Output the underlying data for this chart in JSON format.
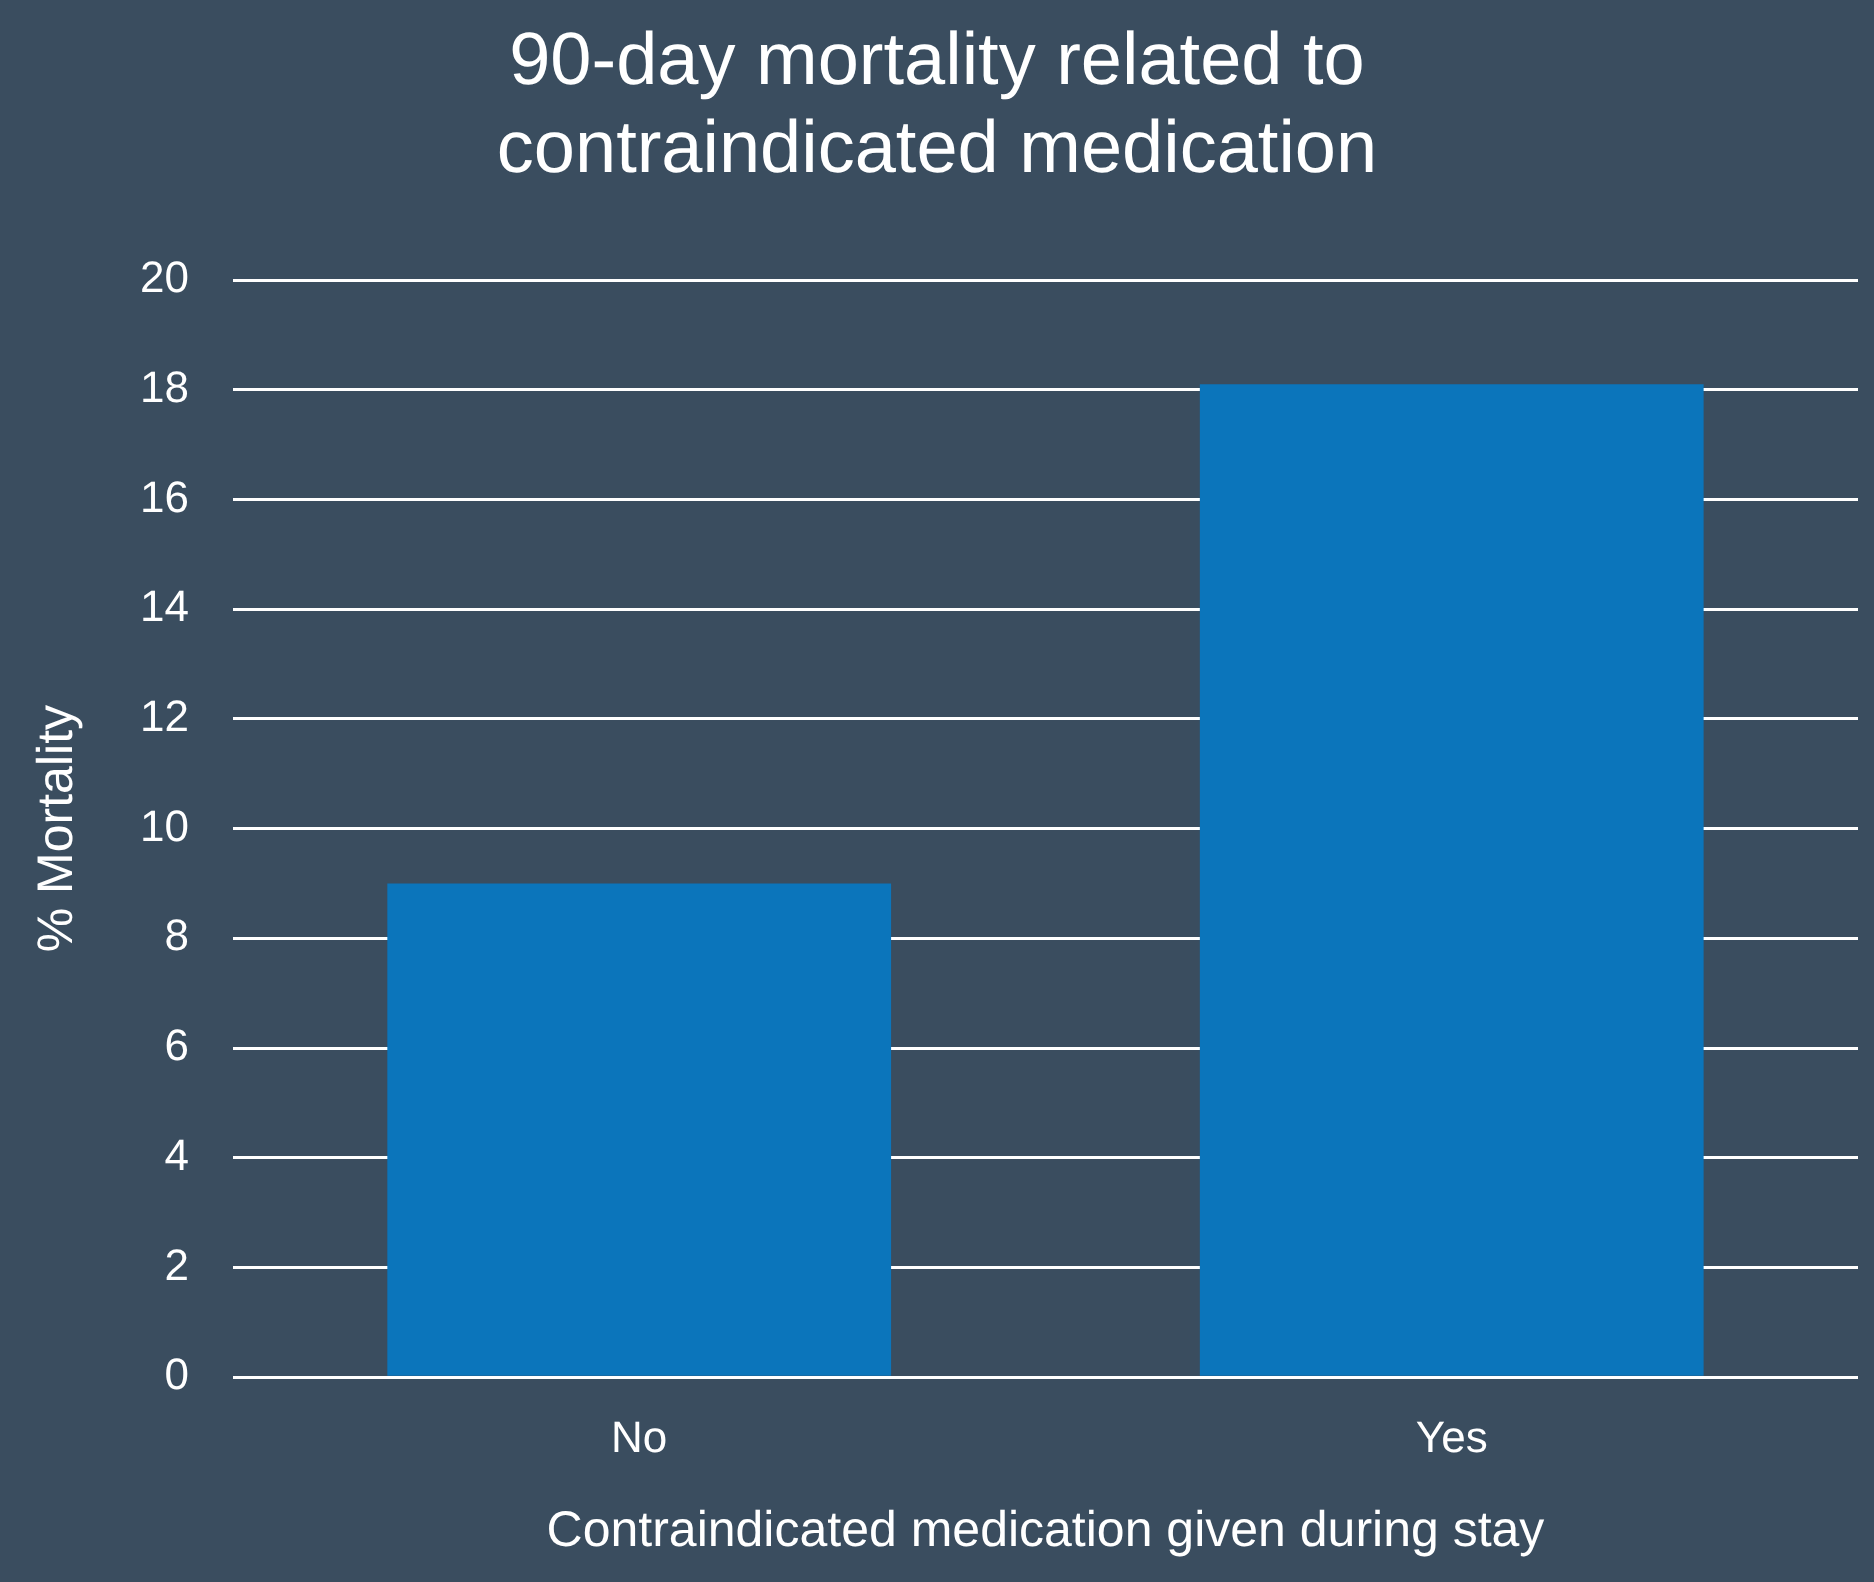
{
  "chart_data": {
    "type": "bar",
    "title": "90-day mortality related to contraindicated medication",
    "xlabel": "Contraindicated medication given during stay",
    "ylabel": "% Mortality",
    "categories": [
      "No",
      "Yes"
    ],
    "values": [
      9,
      18.1
    ],
    "color": "#0b75bb",
    "ylim": [
      0,
      20
    ],
    "yticks": [
      0,
      2,
      4,
      6,
      8,
      10,
      12,
      14,
      16,
      18,
      20
    ],
    "grid": "y",
    "legend": false
  }
}
